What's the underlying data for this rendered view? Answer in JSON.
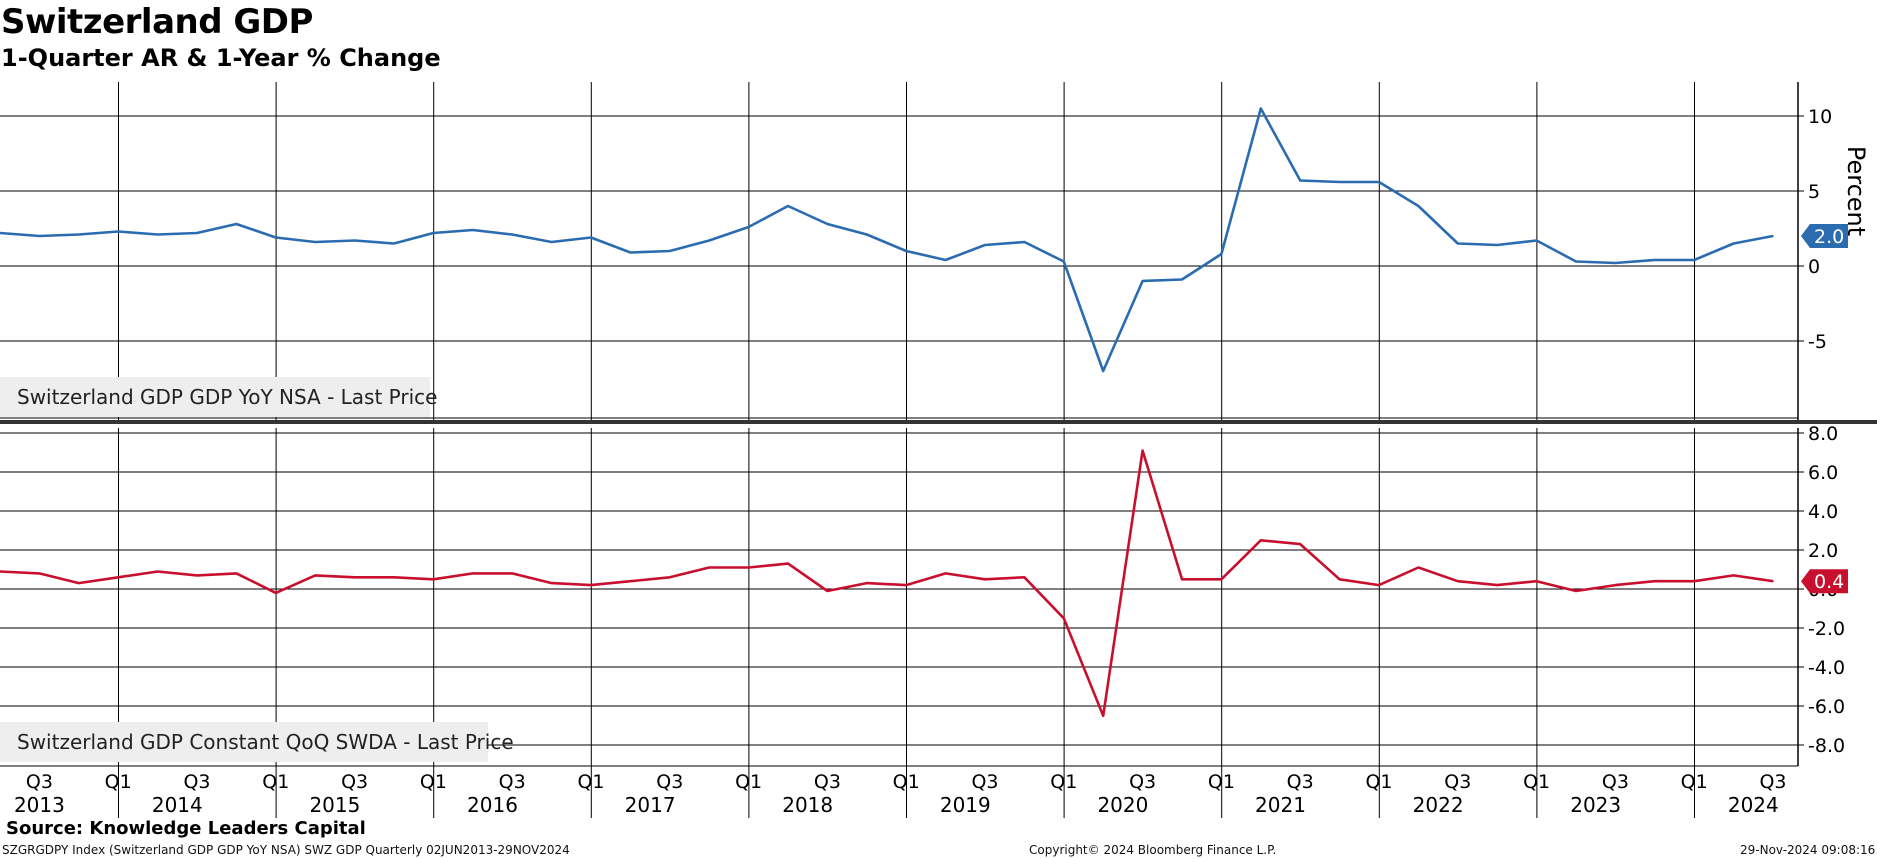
{
  "header": {
    "title": "Switzerland GDP",
    "subtitle": "1-Quarter AR & 1-Year % Change"
  },
  "footer": {
    "source": "Source: Knowledge Leaders Capital",
    "ticker": "SZGRGDPY Index (Switzerland GDP GDP YoY NSA) SWZ GDP  Quarterly 02JUN2013-29NOV2024",
    "copyright": "Copyright© 2024 Bloomberg Finance L.P.",
    "timestamp": "29-Nov-2024 09:08:16"
  },
  "chart_data": {
    "type": "line",
    "x": [
      "2013Q2",
      "2013Q3",
      "2013Q4",
      "2014Q1",
      "2014Q2",
      "2014Q3",
      "2014Q4",
      "2015Q1",
      "2015Q2",
      "2015Q3",
      "2015Q4",
      "2016Q1",
      "2016Q2",
      "2016Q3",
      "2016Q4",
      "2017Q1",
      "2017Q2",
      "2017Q3",
      "2017Q4",
      "2018Q1",
      "2018Q2",
      "2018Q3",
      "2018Q4",
      "2019Q1",
      "2019Q2",
      "2019Q3",
      "2019Q4",
      "2020Q1",
      "2020Q2",
      "2020Q3",
      "2020Q4",
      "2021Q1",
      "2021Q2",
      "2021Q3",
      "2021Q4",
      "2022Q1",
      "2022Q2",
      "2022Q3",
      "2022Q4",
      "2023Q1",
      "2023Q2",
      "2023Q3",
      "2023Q4",
      "2024Q1",
      "2024Q2",
      "2024Q3"
    ],
    "x_tick_labels": [
      {
        "quarter": "2013Q3",
        "label": "Q3"
      },
      {
        "quarter": "2014Q1",
        "label": "Q1"
      },
      {
        "quarter": "2014Q3",
        "label": "Q3"
      },
      {
        "quarter": "2015Q1",
        "label": "Q1"
      },
      {
        "quarter": "2015Q3",
        "label": "Q3"
      },
      {
        "quarter": "2016Q1",
        "label": "Q1"
      },
      {
        "quarter": "2016Q3",
        "label": "Q3"
      },
      {
        "quarter": "2017Q1",
        "label": "Q1"
      },
      {
        "quarter": "2017Q3",
        "label": "Q3"
      },
      {
        "quarter": "2018Q1",
        "label": "Q1"
      },
      {
        "quarter": "2018Q3",
        "label": "Q3"
      },
      {
        "quarter": "2019Q1",
        "label": "Q1"
      },
      {
        "quarter": "2019Q3",
        "label": "Q3"
      },
      {
        "quarter": "2020Q1",
        "label": "Q1"
      },
      {
        "quarter": "2020Q3",
        "label": "Q3"
      },
      {
        "quarter": "2021Q1",
        "label": "Q1"
      },
      {
        "quarter": "2021Q3",
        "label": "Q3"
      },
      {
        "quarter": "2022Q1",
        "label": "Q1"
      },
      {
        "quarter": "2022Q3",
        "label": "Q3"
      },
      {
        "quarter": "2023Q1",
        "label": "Q1"
      },
      {
        "quarter": "2023Q3",
        "label": "Q3"
      },
      {
        "quarter": "2024Q1",
        "label": "Q1"
      },
      {
        "quarter": "2024Q3",
        "label": "Q3"
      }
    ],
    "year_labels": [
      "2013",
      "2014",
      "2015",
      "2016",
      "2017",
      "2018",
      "2019",
      "2020",
      "2021",
      "2022",
      "2023",
      "2024"
    ],
    "panels": [
      {
        "name": "yoy",
        "ylabel": "Percent",
        "ylim": [
          -10,
          12
        ],
        "yticks": [
          -5,
          0,
          5,
          10
        ],
        "ytick_labels": [
          "-5",
          "0",
          "5",
          "10"
        ],
        "grid": true,
        "series": [
          {
            "name": "Switzerland GDP GDP YoY NSA - Last Price",
            "color": "#2b6cb0",
            "values": [
              2.2,
              2.0,
              2.1,
              2.3,
              2.1,
              2.2,
              2.8,
              1.9,
              1.6,
              1.7,
              1.5,
              2.2,
              2.4,
              2.1,
              1.6,
              1.9,
              0.9,
              1.0,
              1.7,
              2.6,
              4.0,
              2.8,
              2.1,
              1.0,
              0.4,
              1.4,
              1.6,
              0.3,
              -7.0,
              -1.0,
              -0.9,
              0.8,
              10.5,
              5.7,
              5.6,
              5.6,
              4.0,
              1.5,
              1.4,
              1.7,
              0.3,
              0.2,
              0.4,
              0.4,
              1.5,
              2.0
            ],
            "last_value_label": "2.0"
          }
        ]
      },
      {
        "name": "qoq",
        "ylim": [
          -9,
          8.5
        ],
        "yticks": [
          -8,
          -6,
          -4,
          -2,
          0,
          2,
          4,
          6,
          8
        ],
        "ytick_labels": [
          "-8.0",
          "-6.0",
          "-4.0",
          "-2.0",
          "0.0",
          "2.0",
          "4.0",
          "6.0",
          "8.0"
        ],
        "grid": true,
        "series": [
          {
            "name": "Switzerland GDP Constant QoQ SWDA - Last Price",
            "color": "#c8102e",
            "values": [
              0.9,
              0.8,
              0.3,
              0.6,
              0.9,
              0.7,
              0.8,
              -0.2,
              0.7,
              0.6,
              0.6,
              0.5,
              0.8,
              0.8,
              0.3,
              0.2,
              0.4,
              0.6,
              1.1,
              1.1,
              1.3,
              -0.1,
              0.3,
              0.2,
              0.8,
              0.5,
              0.6,
              -1.5,
              -6.5,
              7.1,
              0.5,
              0.5,
              2.5,
              2.3,
              0.5,
              0.2,
              1.1,
              0.4,
              0.2,
              0.4,
              -0.1,
              0.2,
              0.4,
              0.4,
              0.7,
              0.4
            ],
            "last_value_label": "0.4"
          }
        ]
      }
    ]
  }
}
